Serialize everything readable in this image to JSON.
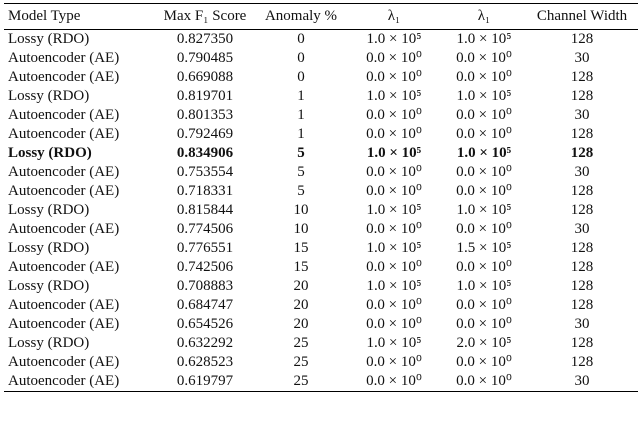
{
  "table": {
    "header": [
      "Model Type",
      "Max F₁ Score",
      "Anomaly %",
      "λ₁",
      "λ₁",
      "Channel Width"
    ],
    "bold_row": 6,
    "rows": [
      [
        "Lossy (RDO)",
        "0.827350",
        "0",
        "1.0 × 10⁵",
        "1.0 × 10⁵",
        "128"
      ],
      [
        "Autoencoder (AE)",
        "0.790485",
        "0",
        "0.0 × 10⁰",
        "0.0 × 10⁰",
        "30"
      ],
      [
        "Autoencoder (AE)",
        "0.669088",
        "0",
        "0.0 × 10⁰",
        "0.0 × 10⁰",
        "128"
      ],
      [
        "Lossy (RDO)",
        "0.819701",
        "1",
        "1.0 × 10⁵",
        "1.0 × 10⁵",
        "128"
      ],
      [
        "Autoencoder (AE)",
        "0.801353",
        "1",
        "0.0 × 10⁰",
        "0.0 × 10⁰",
        "30"
      ],
      [
        "Autoencoder (AE)",
        "0.792469",
        "1",
        "0.0 × 10⁰",
        "0.0 × 10⁰",
        "128"
      ],
      [
        "Lossy (RDO)",
        "0.834906",
        "5",
        "1.0 × 10⁵",
        "1.0 × 10⁵",
        "128"
      ],
      [
        "Autoencoder (AE)",
        "0.753554",
        "5",
        "0.0 × 10⁰",
        "0.0 × 10⁰",
        "30"
      ],
      [
        "Autoencoder (AE)",
        "0.718331",
        "5",
        "0.0 × 10⁰",
        "0.0 × 10⁰",
        "128"
      ],
      [
        "Lossy (RDO)",
        "0.815844",
        "10",
        "1.0 × 10⁵",
        "1.0 × 10⁵",
        "128"
      ],
      [
        "Autoencoder (AE)",
        "0.774506",
        "10",
        "0.0 × 10⁰",
        "0.0 × 10⁰",
        "30"
      ],
      [
        "Lossy (RDO)",
        "0.776551",
        "15",
        "1.0 × 10⁵",
        "1.5 × 10⁵",
        "128"
      ],
      [
        "Autoencoder (AE)",
        "0.742506",
        "15",
        "0.0 × 10⁰",
        "0.0 × 10⁰",
        "128"
      ],
      [
        "Lossy (RDO)",
        "0.708883",
        "20",
        "1.0 × 10⁵",
        "1.0 × 10⁵",
        "128"
      ],
      [
        "Autoencoder (AE)",
        "0.684747",
        "20",
        "0.0 × 10⁰",
        "0.0 × 10⁰",
        "128"
      ],
      [
        "Autoencoder (AE)",
        "0.654526",
        "20",
        "0.0 × 10⁰",
        "0.0 × 10⁰",
        "30"
      ],
      [
        "Lossy (RDO)",
        "0.632292",
        "25",
        "1.0 × 10⁵",
        "2.0 × 10⁵",
        "128"
      ],
      [
        "Autoencoder (AE)",
        "0.628523",
        "25",
        "0.0 × 10⁰",
        "0.0 × 10⁰",
        "128"
      ],
      [
        "Autoencoder (AE)",
        "0.619797",
        "25",
        "0.0 × 10⁰",
        "0.0 × 10⁰",
        "30"
      ]
    ]
  }
}
